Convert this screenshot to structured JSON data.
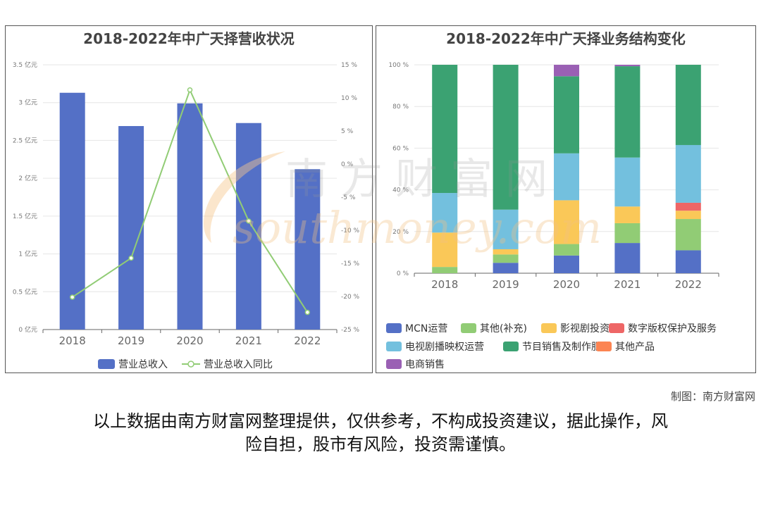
{
  "chart_data": [
    {
      "type": "bar",
      "title": "2018-2022年中广天择营收状况",
      "categories": [
        "2018",
        "2019",
        "2020",
        "2021",
        "2022"
      ],
      "series": [
        {
          "name": "营业总收入",
          "type": "bar",
          "axis": "left",
          "values": [
            3.13,
            2.69,
            2.99,
            2.73,
            2.12
          ],
          "color": "#5470C6"
        },
        {
          "name": "营业总收入同比",
          "type": "line",
          "axis": "right",
          "values": [
            -20.1,
            -14.2,
            11.2,
            -8.6,
            -22.4
          ],
          "color": "#91CC75"
        }
      ],
      "y_left": {
        "ticks": [
          "0 亿元",
          "0.5 亿元",
          "1 亿元",
          "1.5 亿元",
          "2 亿元",
          "2.5 亿元",
          "3 亿元",
          "3.5 亿元"
        ],
        "range": [
          0,
          3.5
        ],
        "unit": "亿元"
      },
      "y_right": {
        "ticks": [
          "-25 %",
          "-20 %",
          "-15 %",
          "-10 %",
          "-5 %",
          "0 %",
          "5 %",
          "10 %",
          "15 %"
        ],
        "range": [
          -25,
          15
        ],
        "unit": "%"
      },
      "legend": "bottom",
      "grid": true
    },
    {
      "type": "bar",
      "stacked": true,
      "title": "2018-2022年中广天择业务结构变化",
      "categories": [
        "2018",
        "2019",
        "2020",
        "2021",
        "2022"
      ],
      "y_ticks": [
        "0 %",
        "20 %",
        "40 %",
        "60 %",
        "80 %",
        "100 %"
      ],
      "ylim": [
        0,
        100
      ],
      "series": [
        {
          "name": "MCN运营",
          "color": "#5470C6",
          "values": [
            0,
            5,
            8.5,
            14.5,
            11
          ]
        },
        {
          "name": "其他(补充)",
          "color": "#91CC75",
          "values": [
            3,
            4,
            5.5,
            9.5,
            15
          ]
        },
        {
          "name": "影视剧投资",
          "color": "#FAC858",
          "values": [
            16.5,
            2.5,
            21,
            8,
            4
          ]
        },
        {
          "name": "数字版权保护及服务",
          "color": "#EE6666",
          "values": [
            0,
            0,
            0,
            0,
            3.8
          ]
        },
        {
          "name": "电视剧播映权运营",
          "color": "#73C0DE",
          "values": [
            19,
            19,
            22.5,
            23.5,
            27.7
          ]
        },
        {
          "name": "节目销售及制作服务",
          "color": "#3BA272",
          "values": [
            61.5,
            69.5,
            37,
            43.8,
            38.5
          ]
        },
        {
          "name": "其他产品",
          "color": "#FC8452",
          "values": [
            0,
            0,
            0,
            0,
            0
          ]
        },
        {
          "name": "电商销售",
          "color": "#9A60B4",
          "values": [
            0,
            0,
            5.5,
            0.7,
            0
          ]
        }
      ],
      "legend": "bottom",
      "grid": true
    }
  ],
  "footer": {
    "credit": "制图：南方财富网",
    "disclaimer_line1": "以上数据由南方财富网整理提供，仅供参考，不构成投资建议，据此操作，风",
    "disclaimer_line2": "险自担，股市有风险，投资需谨慎。"
  },
  "watermark": {
    "text1": "南方财富网",
    "text2": "southmoney.com"
  }
}
